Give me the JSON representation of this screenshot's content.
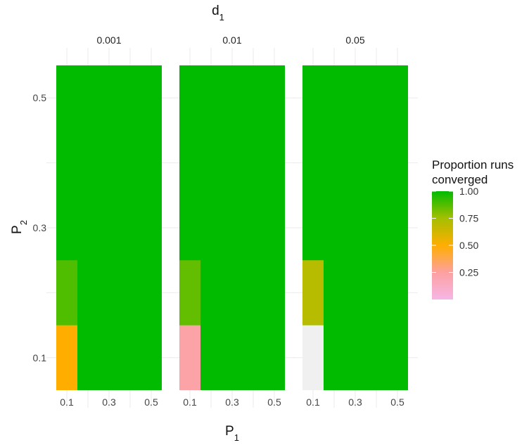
{
  "chart_data": {
    "type": "heatmap",
    "facet_title": "d",
    "facet_title_subscript": "1",
    "x_title": "P",
    "x_title_subscript": "1",
    "y_title": "P",
    "y_title_subscript": "2",
    "x_ticks": [
      0.1,
      0.3,
      0.5
    ],
    "x_tick_labels": [
      "0.1",
      "0.3",
      "0.5"
    ],
    "y_ticks": [
      0.1,
      0.3,
      0.5
    ],
    "y_tick_labels": [
      "0.1",
      "0.3",
      "0.5"
    ],
    "x_range": [
      0.05,
      0.55
    ],
    "y_range": [
      0.05,
      0.55
    ],
    "grid": true,
    "legend": {
      "title_line1": "Proportion runs",
      "title_line2": "converged",
      "placement": "right",
      "range": [
        0,
        1
      ],
      "breaks": [
        0.25,
        0.5,
        0.75,
        1.0
      ],
      "break_labels": [
        "0.25",
        "0.50",
        "0.75",
        "1.00"
      ],
      "color_stops": [
        {
          "value": 0.0,
          "color": "#f6b6e6"
        },
        {
          "value": 0.25,
          "color": "#fda0a0"
        },
        {
          "value": 0.5,
          "color": "#ffae00"
        },
        {
          "value": 0.75,
          "color": "#a5bf00"
        },
        {
          "value": 1.0,
          "color": "#00bb00"
        }
      ]
    },
    "missing_color": "#f0f0f0",
    "facets": [
      {
        "label": "0.001",
        "background_value": 1.0,
        "cells": [
          {
            "x": 0.1,
            "y": 0.1,
            "value": 0.5
          },
          {
            "x": 0.1,
            "y": 0.2,
            "value": 0.88
          }
        ]
      },
      {
        "label": "0.01",
        "background_value": 1.0,
        "cells": [
          {
            "x": 0.1,
            "y": 0.1,
            "value": 0.22
          },
          {
            "x": 0.1,
            "y": 0.2,
            "value": 0.85
          }
        ]
      },
      {
        "label": "0.05",
        "background_value": 1.0,
        "cells": [
          {
            "x": 0.1,
            "y": 0.1,
            "value": null
          },
          {
            "x": 0.1,
            "y": 0.2,
            "value": 0.7
          }
        ]
      }
    ]
  }
}
